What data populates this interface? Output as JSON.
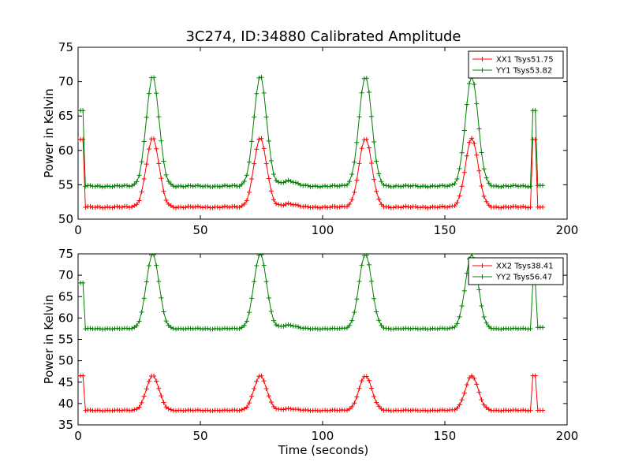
{
  "figure": {
    "title": "3C274, ID:34880 Calibrated Amplitude"
  },
  "colors": {
    "xx": "#ff0000",
    "yy": "#008000"
  },
  "chart_data": [
    {
      "type": "line",
      "ylabel": "Power in Kelvin",
      "xlabel": "",
      "xlim": [
        0,
        200
      ],
      "ylim": [
        50,
        75
      ],
      "xticks": [
        0,
        50,
        100,
        150,
        200
      ],
      "yticks": [
        50,
        55,
        60,
        65,
        70,
        75
      ],
      "legend": "top-right",
      "grid": false,
      "series": [
        {
          "name": "XX1 Tsys51.75",
          "color": "#ff0000",
          "marker": "+",
          "base": 51.75,
          "peak": 61.8,
          "edge": 61.6,
          "end_value": 51.75
        },
        {
          "name": "YY1 Tsys53.82",
          "color": "#008000",
          "marker": "+",
          "base": 54.8,
          "peak": 70.8,
          "edge": 65.8,
          "end_value": 54.9
        }
      ],
      "peaks_x": [
        30.5,
        74.5,
        117.5,
        161
      ]
    },
    {
      "type": "line",
      "ylabel": "Power in Kelvin",
      "xlabel": "Time (seconds)",
      "xlim": [
        0,
        200
      ],
      "ylim": [
        35,
        75
      ],
      "xticks": [
        0,
        50,
        100,
        150,
        200
      ],
      "yticks": [
        35,
        40,
        45,
        50,
        55,
        60,
        65,
        70,
        75
      ],
      "legend": "top-right",
      "grid": false,
      "series": [
        {
          "name": "XX2 Tsys38.41",
          "color": "#ff0000",
          "marker": "+",
          "base": 38.4,
          "peak": 46.5,
          "edge": 46.5,
          "end_value": 38.4
        },
        {
          "name": "YY2 Tsys56.47",
          "color": "#008000",
          "marker": "+",
          "base": 57.5,
          "peak": 75,
          "edge": 68.2,
          "end_value": 57.8
        }
      ],
      "peaks_x": [
        30.5,
        74.5,
        117.5,
        161
      ]
    }
  ]
}
